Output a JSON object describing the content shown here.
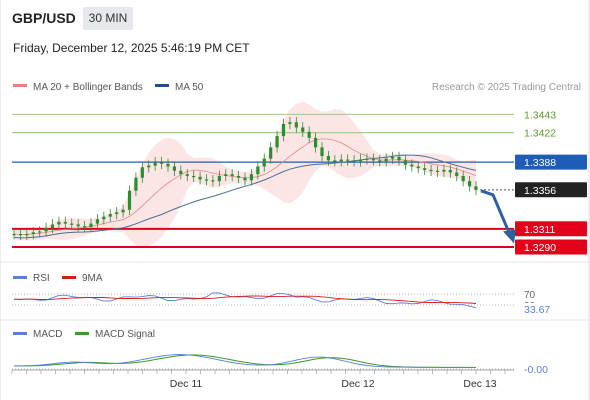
{
  "header": {
    "symbol": "GBP/USD",
    "timeframe": "30 MIN",
    "datetime": "Friday, December 12, 2025 5:46:19 PM CET"
  },
  "legend": {
    "ma20_bb": "MA 20 + Bollinger Bands",
    "ma50": "MA 50",
    "credit": "Research © 2025 Trading Central"
  },
  "colors": {
    "ma20_bb_swatch": "#f08080",
    "ma50_swatch": "#1f4e8c",
    "bollinger_fill": "#fbdcdc",
    "ma20_line": "#e08a8a",
    "ma50_line": "#4a6d9a",
    "candle": "#2e8b2e",
    "resistance": "#a6cf8a",
    "resistance_label": "#5a9a2a",
    "support": "#e3001b",
    "current_line": "#1f5cb8",
    "last_price_badge": "#222222",
    "arrow": "#2f5f9f",
    "rsi": "#5b7fd6",
    "rsi_ma": "#d81b1b",
    "macd": "#5b7fd6",
    "macd_signal": "#3a9a2a"
  },
  "chart_data": [
    {
      "type": "candlestick",
      "title": "GBP/USD 30 MIN",
      "x_ticks": [
        "Dec 11",
        "Dec 12",
        "Dec 13"
      ],
      "y_range": [
        1.3275,
        1.3462
      ],
      "close": [
        1.3305,
        1.3304,
        1.3305,
        1.3307,
        1.3308,
        1.3312,
        1.3316,
        1.3319,
        1.3317,
        1.3316,
        1.3314,
        1.3313,
        1.3317,
        1.3322,
        1.3325,
        1.3328,
        1.333,
        1.3333,
        1.3355,
        1.337,
        1.3382,
        1.3384,
        1.3388,
        1.3386,
        1.3383,
        1.3378,
        1.3374,
        1.3372,
        1.3371,
        1.3368,
        1.3367,
        1.3366,
        1.3372,
        1.3374,
        1.3372,
        1.337,
        1.3367,
        1.3374,
        1.3383,
        1.3392,
        1.3405,
        1.3418,
        1.3432,
        1.3434,
        1.3428,
        1.3423,
        1.3416,
        1.3405,
        1.3395,
        1.339,
        1.3389,
        1.3391,
        1.339,
        1.3389,
        1.3391,
        1.3392,
        1.339,
        1.3389,
        1.3392,
        1.3394,
        1.339,
        1.3385,
        1.3383,
        1.3381,
        1.3379,
        1.3378,
        1.3377,
        1.3379,
        1.3376,
        1.3372,
        1.3366,
        1.336,
        1.3356
      ],
      "last_price": 1.3356,
      "levels": {
        "resistance": [
          1.3443,
          1.3422
        ],
        "current": 1.3388,
        "support": [
          1.3311,
          1.329
        ]
      },
      "forecast_arrow": {
        "from": 1.3356,
        "to": 1.3293
      }
    },
    {
      "type": "line",
      "title": "RSI",
      "series": [
        {
          "name": "RSI",
          "last_value": 33.67
        },
        {
          "name": "9MA"
        }
      ],
      "reference_levels": [
        70,
        30
      ]
    },
    {
      "type": "line",
      "title": "MACD",
      "series": [
        {
          "name": "MACD",
          "last_value": -0.0
        },
        {
          "name": "MACD Signal"
        }
      ]
    }
  ],
  "labels": {
    "r1": "1.3443",
    "r2": "1.3422",
    "current": "1.3388",
    "last": "1.3356",
    "s1": "1.3311",
    "s2": "1.3290",
    "rsi": "RSI",
    "rsi_ma": "9MA",
    "rsi_70": "70",
    "rsi_30": "30",
    "rsi_value": "33.67",
    "macd": "MACD",
    "macd_signal": "MACD Signal",
    "macd_value": "-0.00",
    "x_dec11": "Dec 11",
    "x_dec12": "Dec 12",
    "x_dec13": "Dec 13"
  }
}
